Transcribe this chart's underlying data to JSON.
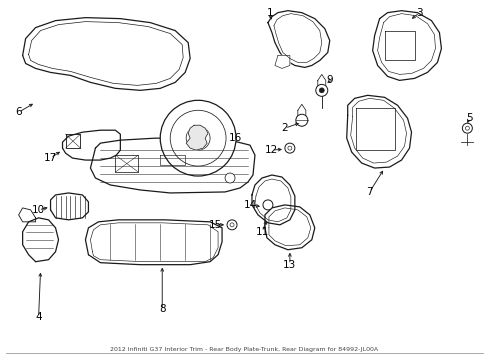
{
  "title": "2012 Infiniti G37 Interior Trim - Rear Body Plate-Trunk, Rear Diagram for 84992-JL00A",
  "bg_color": "#ffffff",
  "line_color": "#1a1a1a",
  "figsize": [
    4.89,
    3.6
  ],
  "dpi": 100,
  "font_size": 7.5
}
